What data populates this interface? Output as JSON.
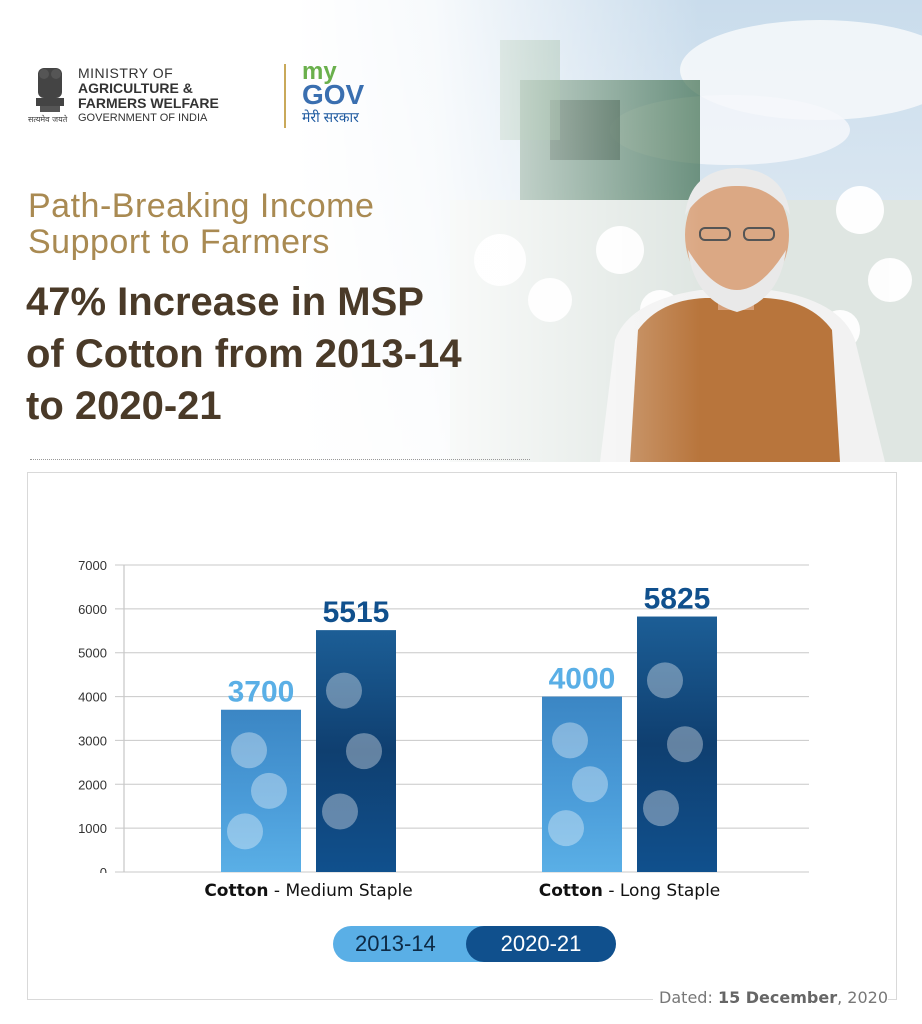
{
  "header": {
    "ministry_line1": "MINISTRY OF",
    "ministry_line2": "AGRICULTURE &",
    "ministry_line3": "FARMERS WELFARE",
    "ministry_line4": "GOVERNMENT OF INDIA",
    "emblem_motto": "सत्यमेव जयते",
    "mygov_my": "my",
    "mygov_gov": "GOV",
    "mygov_sarkar": "मेरी सरकार"
  },
  "subtitle_line1": "Path-Breaking Income",
  "subtitle_line2": "Support to Farmers",
  "headline_line1": "47% Increase in MSP",
  "headline_line2": "of Cotton from 2013-14",
  "headline_line3": "to 2020-21",
  "chart_data": {
    "type": "bar",
    "categories": [
      {
        "bold": "Cotton",
        "rest": " - Medium Staple"
      },
      {
        "bold": "Cotton",
        "rest": " - Long Staple"
      }
    ],
    "series": [
      {
        "name": "2013-14",
        "values": [
          3700,
          4000
        ],
        "color": "#5aafe6"
      },
      {
        "name": "2020-21",
        "values": [
          5515,
          5825
        ],
        "color": "#10508d"
      }
    ],
    "yticks": [
      0,
      1000,
      2000,
      3000,
      4000,
      5000,
      6000,
      7000
    ],
    "ylim": [
      0,
      7000
    ],
    "grid": true,
    "legend_position": "bottom-center"
  },
  "footer": {
    "dated_label": "Dated:",
    "dated_value": "15 December",
    "dated_year": ", 2020"
  },
  "colors": {
    "subtitle": "#a98a52",
    "headline": "#4a3a28",
    "series_light": "#5aafe6",
    "series_dark": "#10508d"
  }
}
